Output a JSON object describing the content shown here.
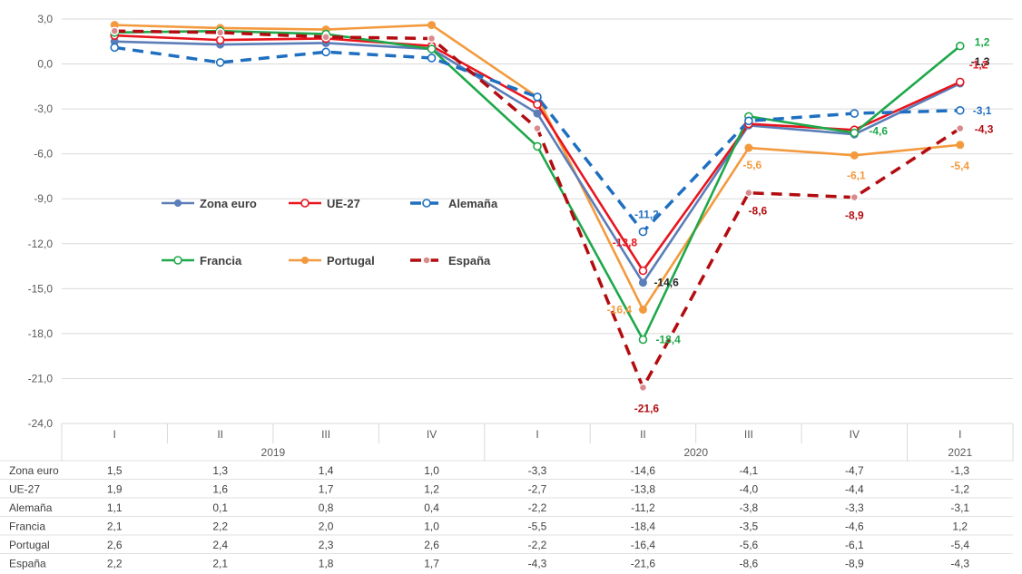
{
  "chart_data": {
    "type": "line",
    "categories": [
      "I",
      "II",
      "III",
      "IV",
      "I",
      "II",
      "III",
      "IV",
      "I"
    ],
    "years": [
      {
        "label": "2019",
        "span": [
          0,
          3
        ]
      },
      {
        "label": "2020",
        "span": [
          4,
          7
        ]
      },
      {
        "label": "2021",
        "span": [
          8,
          8
        ]
      }
    ],
    "ylim": [
      -24,
      3
    ],
    "yticks": [
      3,
      0,
      -3,
      -6,
      -9,
      -12,
      -15,
      -18,
      -21,
      -24
    ],
    "ytick_labels": [
      "3,0",
      "0,0",
      "-3,0",
      "-6,0",
      "-9,0",
      "-12,0",
      "-15,0",
      "-18,0",
      "-21,0",
      "-24,0"
    ],
    "grid": true,
    "series": [
      {
        "name": "Zona euro",
        "color": "#5B7DB8",
        "dash": false,
        "marker": "filled",
        "values": [
          1.5,
          1.3,
          1.4,
          1.0,
          -3.3,
          -14.6,
          -4.1,
          -4.7,
          -1.3
        ],
        "cells": [
          "1,5",
          "1,3",
          "1,4",
          "1,0",
          "-3,3",
          "-14,6",
          "-4,1",
          "-4,7",
          "-1,3"
        ],
        "data_labels": [
          {
            "idx": 5,
            "text": "-14,6"
          },
          {
            "idx": 8,
            "text": "-1,3"
          }
        ],
        "label_color": "#262626"
      },
      {
        "name": "UE-27",
        "color": "#E8141E",
        "dash": false,
        "marker": "open",
        "values": [
          1.9,
          1.6,
          1.7,
          1.2,
          -2.7,
          -13.8,
          -4.0,
          -4.4,
          -1.2
        ],
        "cells": [
          "1,9",
          "1,6",
          "1,7",
          "1,2",
          "-2,7",
          "-13,8",
          "-4,0",
          "-4,4",
          "-1,2"
        ],
        "data_labels": [
          {
            "idx": 5,
            "text": "-13,8"
          },
          {
            "idx": 8,
            "text": "-1,2"
          }
        ],
        "label_color": "#E8141E"
      },
      {
        "name": "Alemaña",
        "color": "#1F6FC0",
        "dash": true,
        "marker": "open",
        "values": [
          1.1,
          0.1,
          0.8,
          0.4,
          -2.2,
          -11.2,
          -3.8,
          -3.3,
          -3.1
        ],
        "cells": [
          "1,1",
          "0,1",
          "0,8",
          "0,4",
          "-2,2",
          "-11,2",
          "-3,8",
          "-3,3",
          "-3,1"
        ],
        "data_labels": [
          {
            "idx": 5,
            "text": "-11,2"
          },
          {
            "idx": 8,
            "text": "-3,1"
          }
        ],
        "label_color": "#1F6FC0"
      },
      {
        "name": "Francia",
        "color": "#1EA84A",
        "dash": false,
        "marker": "open",
        "values": [
          2.1,
          2.2,
          2.0,
          1.0,
          -5.5,
          -18.4,
          -3.5,
          -4.6,
          1.2
        ],
        "cells": [
          "2,1",
          "2,2",
          "2,0",
          "1,0",
          "-5,5",
          "-18,4",
          "-3,5",
          "-4,6",
          "1,2"
        ],
        "data_labels": [
          {
            "idx": 5,
            "text": "-18,4"
          },
          {
            "idx": 7,
            "text": "-4,6"
          },
          {
            "idx": 8,
            "text": "1,2"
          }
        ],
        "label_color": "#1EA84A"
      },
      {
        "name": "Portugal",
        "color": "#F39A3E",
        "dash": false,
        "marker": "filled",
        "values": [
          2.6,
          2.4,
          2.3,
          2.6,
          -2.2,
          -16.4,
          -5.6,
          -6.1,
          -5.4
        ],
        "cells": [
          "2,6",
          "2,4",
          "2,3",
          "2,6",
          "-2,2",
          "-16,4",
          "-5,6",
          "-6,1",
          "-5,4"
        ],
        "data_labels": [
          {
            "idx": 5,
            "text": "-16,4"
          },
          {
            "idx": 6,
            "text": "-5,6"
          },
          {
            "idx": 7,
            "text": "-6,1"
          },
          {
            "idx": 8,
            "text": "-5,4"
          }
        ],
        "label_color": "#F39A3E"
      },
      {
        "name": "España",
        "color": "#B30C10",
        "dash": true,
        "marker": "soft",
        "values": [
          2.2,
          2.1,
          1.8,
          1.7,
          -4.3,
          -21.6,
          -8.6,
          -8.9,
          -4.3
        ],
        "cells": [
          "2,2",
          "2,1",
          "1,8",
          "1,7",
          "-4,3",
          "-21,6",
          "-8,6",
          "-8,9",
          "-4,3"
        ],
        "data_labels": [
          {
            "idx": 5,
            "text": "-21,6"
          },
          {
            "idx": 6,
            "text": "-8,6"
          },
          {
            "idx": 7,
            "text": "-8,9"
          },
          {
            "idx": 8,
            "text": "-4,3"
          }
        ],
        "label_color": "#B30C10"
      }
    ]
  }
}
